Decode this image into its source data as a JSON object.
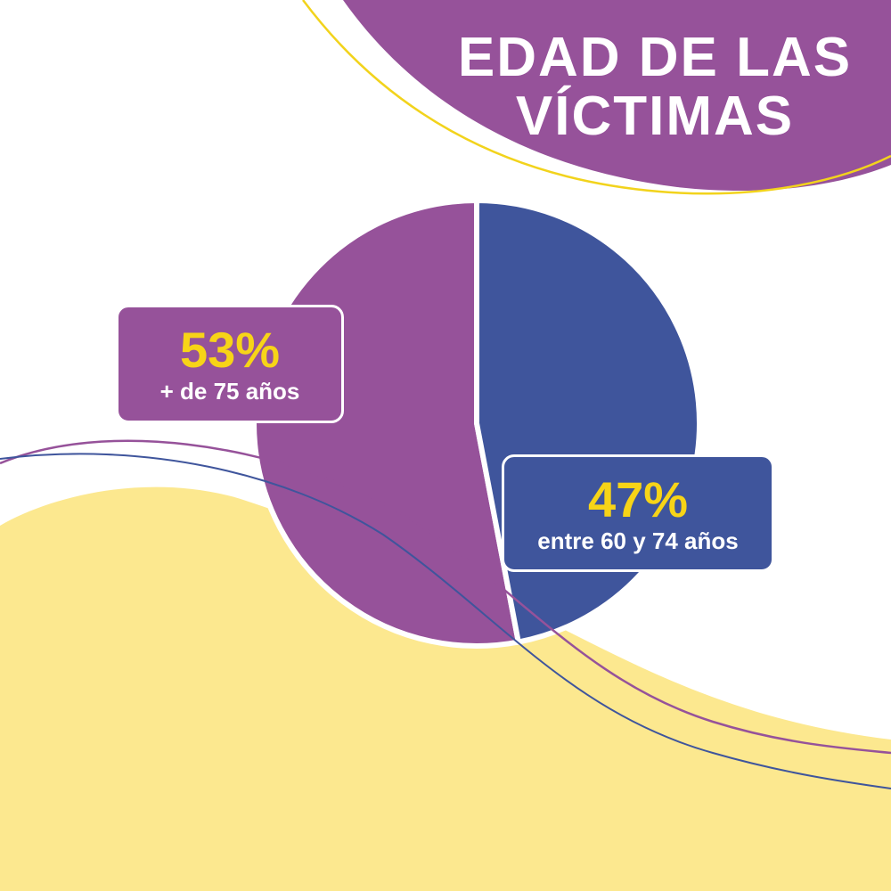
{
  "chart_data": {
    "type": "pie",
    "title": "EDAD DE LAS VÍCTIMAS",
    "categories": [
      "+ de 75 años",
      "entre 60 y 74 años"
    ],
    "values": [
      53,
      47
    ],
    "value_labels": [
      "53%",
      "47%"
    ],
    "colors": [
      "#96529a",
      "#3f559c"
    ]
  }
}
